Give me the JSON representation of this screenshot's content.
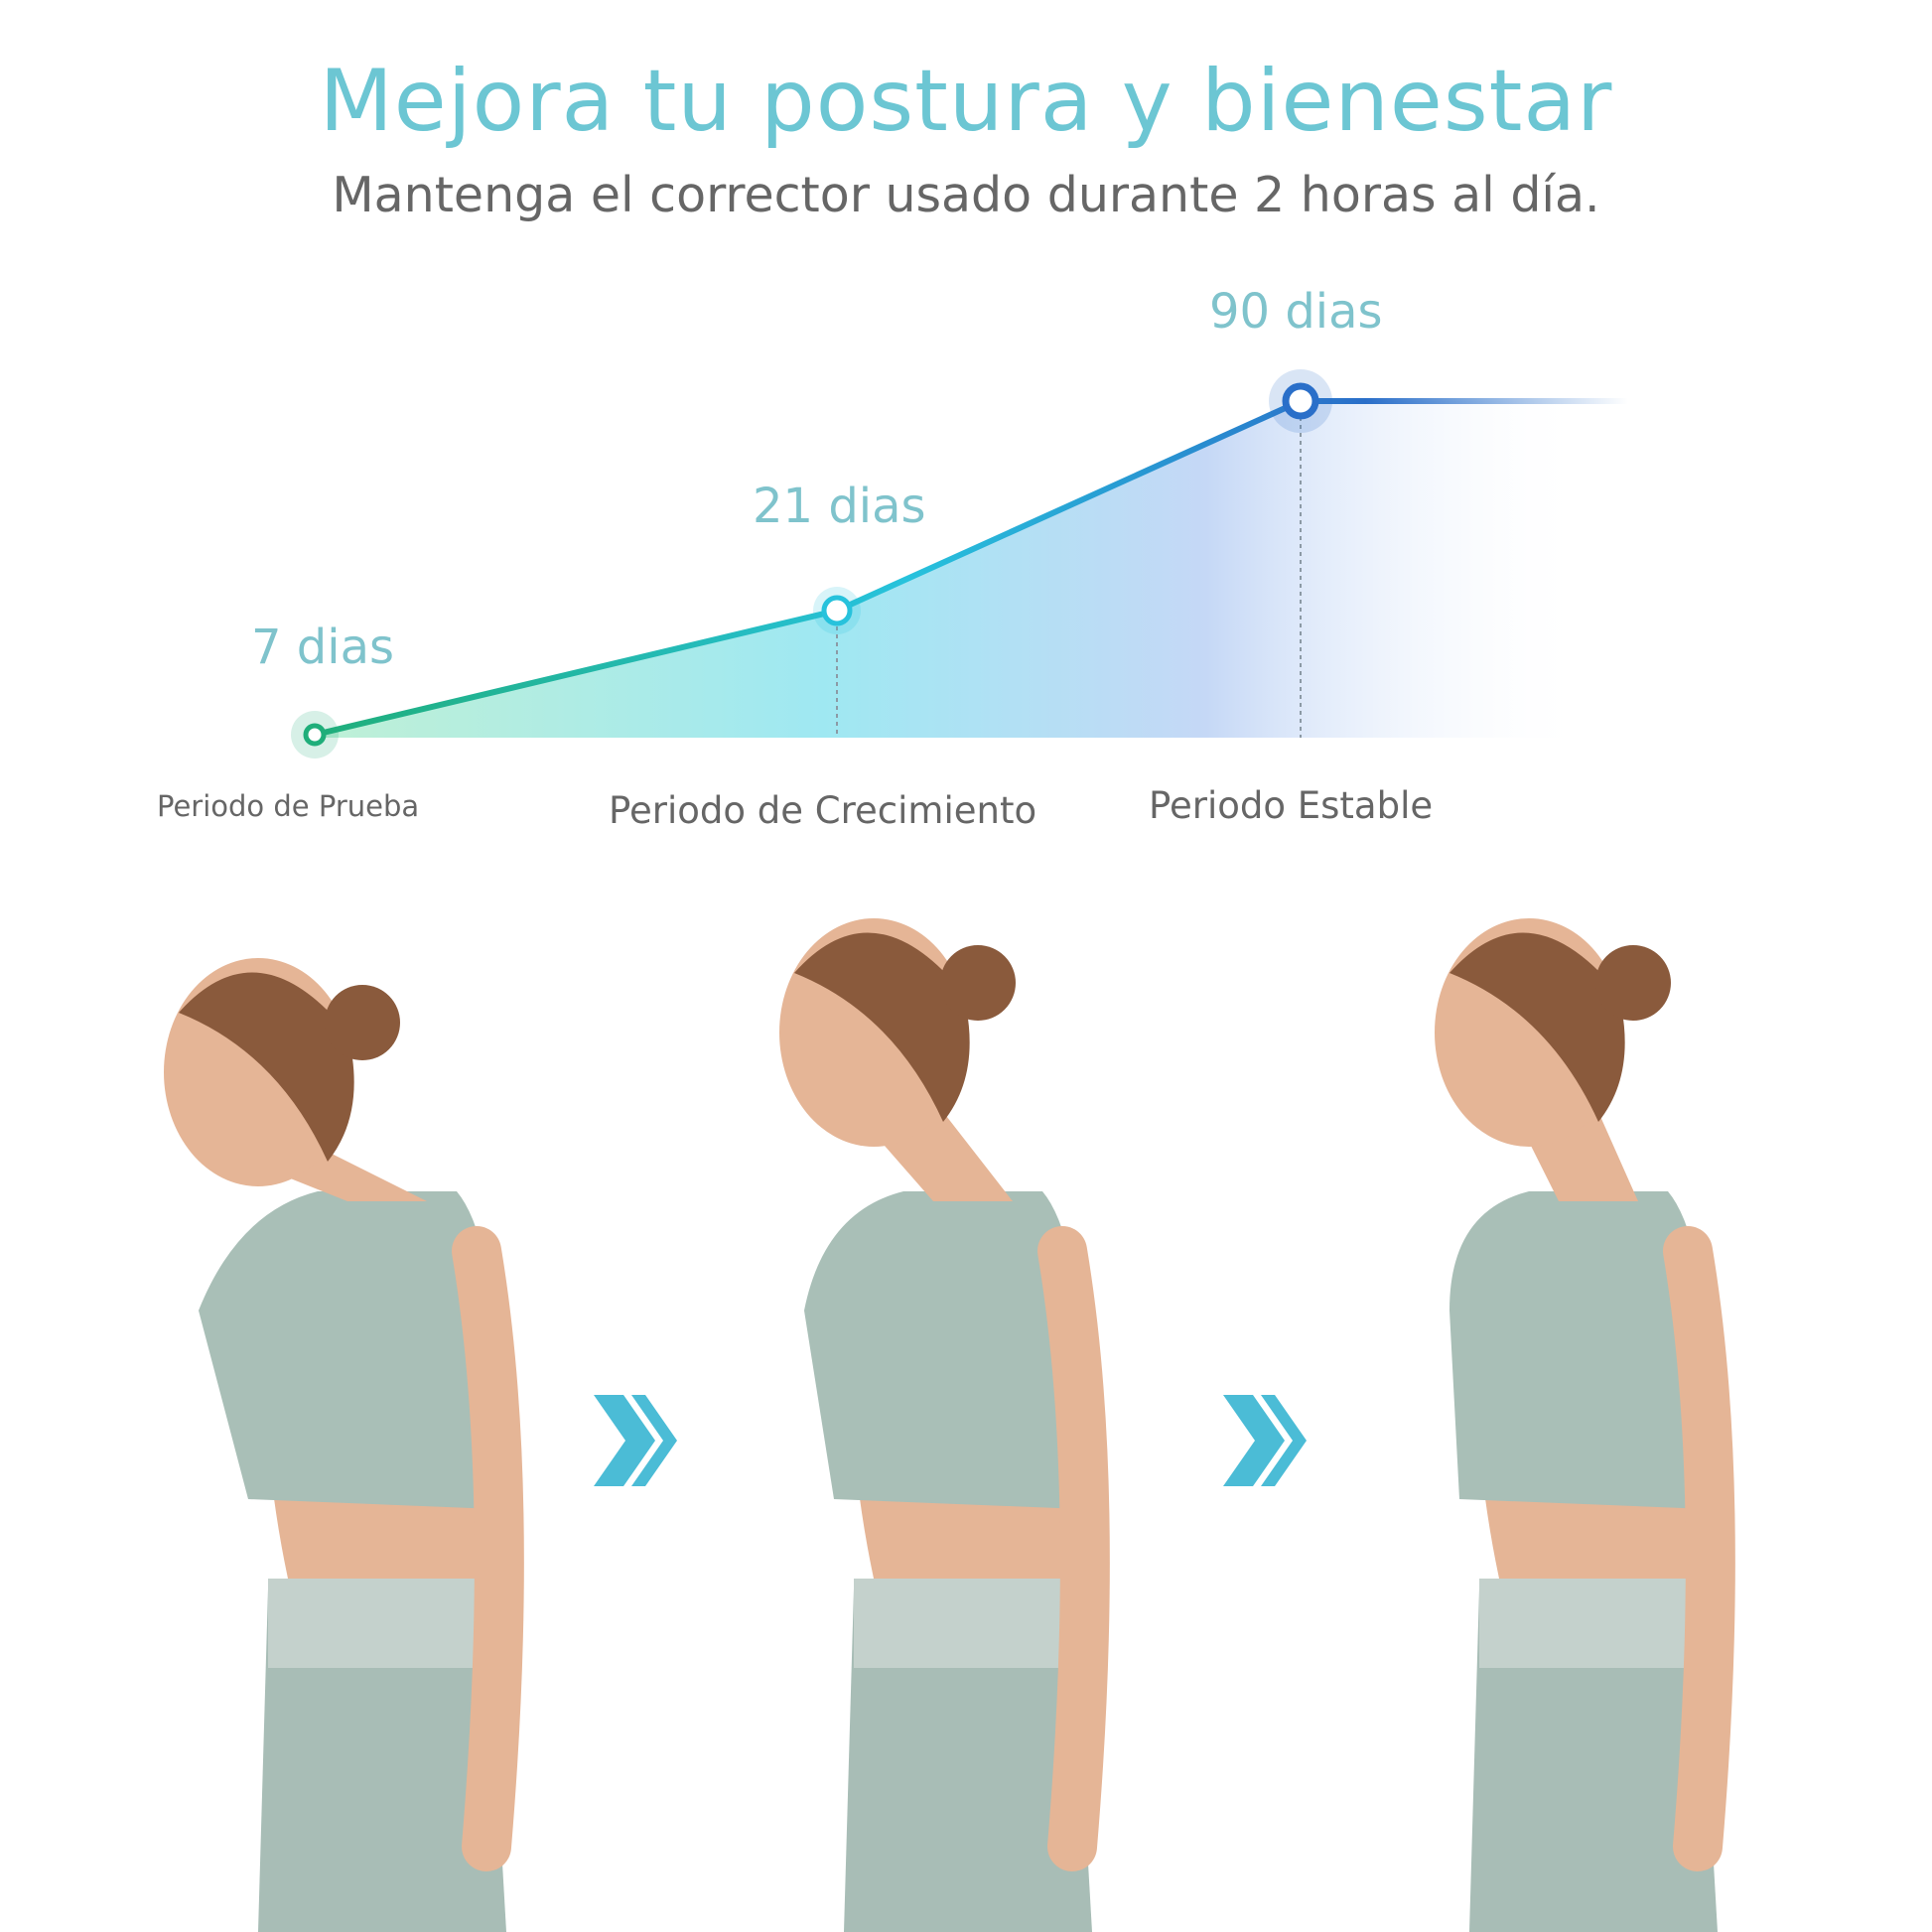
{
  "header": {
    "title": "Mejora tu postura y bienestar",
    "subtitle": "Mantenga el corrector usado durante 2 horas al día."
  },
  "chart_data": {
    "type": "line",
    "points": [
      {
        "label": "7 dias",
        "days": 7,
        "period": "Periodo de Prueba"
      },
      {
        "label": "21 dias",
        "days": 21,
        "period": "Periodo de Crecimiento"
      },
      {
        "label": "90 dias",
        "days": 90,
        "period": "Periodo Estable"
      }
    ],
    "colors": {
      "start": "#1fae7a",
      "middle": "#27c2dc",
      "end": "#2a6fc9",
      "accent": "#6cc6d3"
    },
    "grid": false
  },
  "photos": {
    "figures": [
      "slouched-posture",
      "improving-posture",
      "upright-posture"
    ],
    "arrow_icon": "double-chevron-right-icon",
    "arrow_color": "#4bbcd6",
    "top_color": "#a9bfb7",
    "skin_color": "#e5b596"
  }
}
